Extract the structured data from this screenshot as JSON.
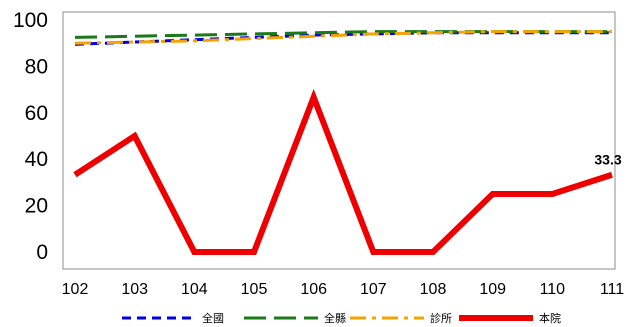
{
  "chart_data": {
    "type": "line",
    "x": [
      "102",
      "103",
      "104",
      "105",
      "106",
      "107",
      "108",
      "109",
      "110",
      "111"
    ],
    "ylim": [
      0,
      100
    ],
    "yticks": [
      0,
      20,
      40,
      60,
      80,
      100
    ],
    "grid": false,
    "legend_position": "bottom",
    "series": [
      {
        "name": "全國",
        "color": "#0000ee",
        "dash": "dash",
        "values": [
          89.5,
          90.5,
          91.5,
          92.5,
          93.5,
          94,
          94.5,
          94.5,
          94.5,
          94.5
        ]
      },
      {
        "name": "全縣",
        "color": "#1a7a1a",
        "dash": "longdash",
        "values": [
          92.5,
          93,
          93.5,
          94,
          94.5,
          95,
          95,
          95,
          95,
          95
        ]
      },
      {
        "name": "診所",
        "color": "#f5a300",
        "dash": "dashdot",
        "values": [
          90,
          90.5,
          91,
          92,
          93,
          94,
          94.5,
          95,
          95,
          95
        ]
      },
      {
        "name": "本院",
        "color": "#ee0000",
        "dash": "solid",
        "values": [
          33.3,
          50,
          0,
          0,
          66.7,
          0,
          0,
          25,
          25,
          33.3
        ]
      }
    ],
    "annotations": [
      {
        "series": "本院",
        "x": "111",
        "label": "33.3"
      }
    ]
  }
}
